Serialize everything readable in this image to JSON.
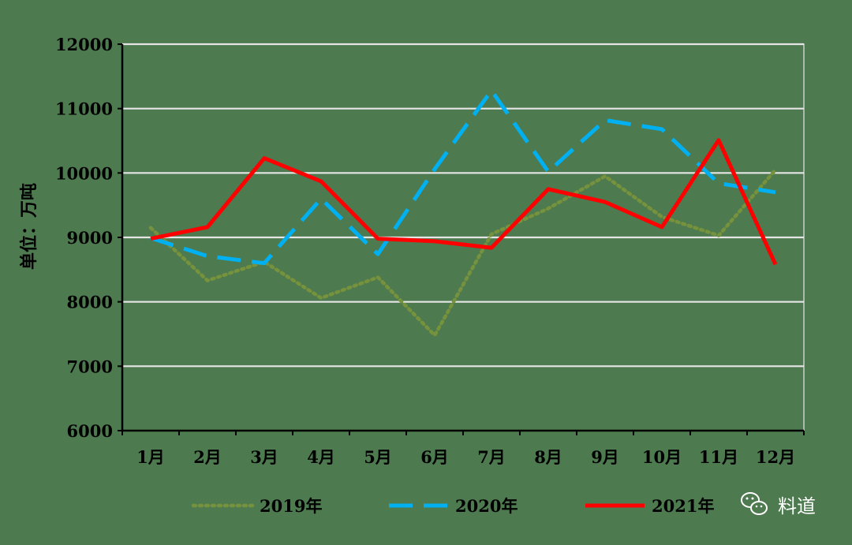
{
  "chart_data": {
    "type": "line",
    "ylabel": "单位：万吨",
    "xlabel": "",
    "title": "",
    "ylim": [
      6000,
      12000
    ],
    "yticks": [
      6000,
      7000,
      8000,
      9000,
      10000,
      11000,
      12000
    ],
    "categories": [
      "1月",
      "2月",
      "3月",
      "4月",
      "5月",
      "6月",
      "7月",
      "8月",
      "9月",
      "10月",
      "11月",
      "12月"
    ],
    "grid": true,
    "legend_position": "bottom",
    "series": [
      {
        "name": "2019年",
        "color": "#76923c",
        "style": "dotted",
        "values": [
          9150,
          8330,
          8620,
          8060,
          8380,
          7480,
          9050,
          9450,
          9950,
          9320,
          9030,
          10050
        ]
      },
      {
        "name": "2020年",
        "color": "#00b0f0",
        "style": "dashed",
        "values": [
          8990,
          8710,
          8600,
          9600,
          8740,
          10060,
          11280,
          10020,
          10820,
          10680,
          9840,
          9700
        ]
      },
      {
        "name": "2021年",
        "color": "#ff0000",
        "style": "solid",
        "values": [
          8980,
          9160,
          10230,
          9870,
          8980,
          8940,
          8840,
          9750,
          9550,
          9160,
          10510,
          8580
        ]
      }
    ]
  },
  "watermark": {
    "logo_icon": "wechat-icon",
    "text": "料道"
  }
}
